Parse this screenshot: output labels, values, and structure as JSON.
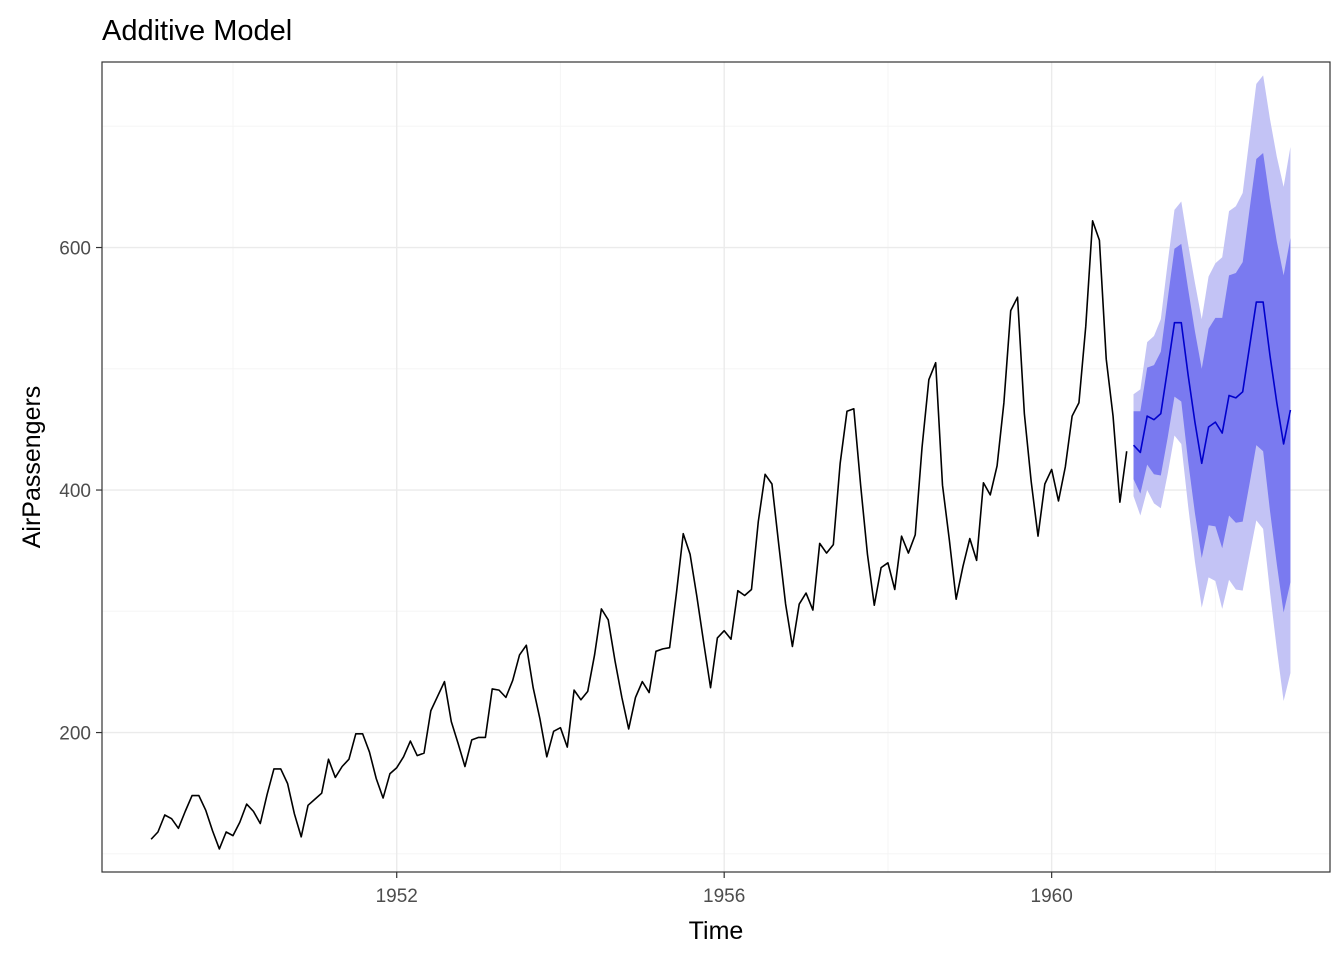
{
  "chart_data": {
    "type": "line",
    "title": "Additive Model",
    "xlabel": "Time",
    "ylabel": "AirPassengers",
    "xlim": [
      1948.4,
      1963.4
    ],
    "ylim": [
      85,
      753
    ],
    "xticks": [
      1952,
      1956,
      1960
    ],
    "xtick_labels": [
      "1952",
      "1956",
      "1960"
    ],
    "yticks": [
      200,
      400,
      600
    ],
    "ytick_labels": [
      "200",
      "400",
      "600"
    ],
    "grid": true,
    "legend": "none",
    "series": [
      {
        "start": 1949,
        "frequency": 12,
        "values": [
          112,
          118,
          132,
          129,
          121,
          135,
          148,
          148,
          136,
          119,
          104,
          118,
          115,
          126,
          141,
          135,
          125,
          149,
          170,
          170,
          158,
          133,
          114,
          140,
          145,
          150,
          178,
          163,
          172,
          178,
          199,
          199,
          184,
          162,
          146,
          166,
          171,
          180,
          193,
          181,
          183,
          218,
          230,
          242,
          209,
          191,
          172,
          194,
          196,
          196,
          236,
          235,
          229,
          243,
          264,
          272,
          237,
          211,
          180,
          201,
          204,
          188,
          235,
          227,
          234,
          264,
          302,
          293,
          259,
          229,
          203,
          229,
          242,
          233,
          267,
          269,
          270,
          315,
          364,
          347,
          312,
          274,
          237,
          278,
          284,
          277,
          317,
          313,
          318,
          374,
          413,
          405,
          355,
          306,
          271,
          306,
          315,
          301,
          356,
          348,
          355,
          422,
          465,
          467,
          404,
          347,
          305,
          336,
          340,
          318,
          362,
          348,
          363,
          435,
          491,
          505,
          404,
          359,
          310,
          337,
          360,
          342,
          406,
          396,
          420,
          472,
          548,
          559,
          463,
          407,
          362,
          405,
          417,
          391,
          419,
          461,
          472,
          535,
          622,
          606,
          508,
          461,
          390,
          432
        ]
      },
      {
        "start": 1961,
        "frequency": 12,
        "forecast": [
          437,
          431,
          461,
          458,
          463,
          500,
          538,
          538,
          495,
          456,
          422,
          452,
          456,
          447,
          478,
          476,
          481,
          518,
          555,
          555,
          511,
          472,
          438,
          466
        ],
        "lo80": [
          409,
          397,
          421,
          413,
          412,
          443,
          477,
          473,
          424,
          381,
          344,
          371,
          370,
          352,
          379,
          373,
          374,
          405,
          437,
          432,
          383,
          339,
          299,
          324
        ],
        "hi80": [
          465,
          465,
          501,
          503,
          514,
          557,
          599,
          603,
          566,
          531,
          500,
          533,
          542,
          542,
          577,
          579,
          588,
          631,
          673,
          678,
          639,
          605,
          577,
          608
        ],
        "lo95": [
          395,
          379,
          400,
          389,
          385,
          413,
          445,
          438,
          387,
          341,
          303,
          328,
          325,
          302,
          326,
          318,
          317,
          346,
          375,
          368,
          316,
          269,
          226,
          249
        ],
        "hi95": [
          479,
          483,
          522,
          527,
          541,
          587,
          631,
          638,
          603,
          571,
          541,
          576,
          587,
          592,
          630,
          634,
          645,
          690,
          735,
          742,
          706,
          675,
          650,
          683
        ]
      }
    ],
    "colors": {
      "history_line": "#000000",
      "forecast_line": "#0000cc",
      "band_80": "#7a7af0",
      "band_95": "#c3c3f5",
      "grid_major": "#ebebeb",
      "grid_minor": "#f5f5f5",
      "panel_border": "#333333"
    }
  }
}
